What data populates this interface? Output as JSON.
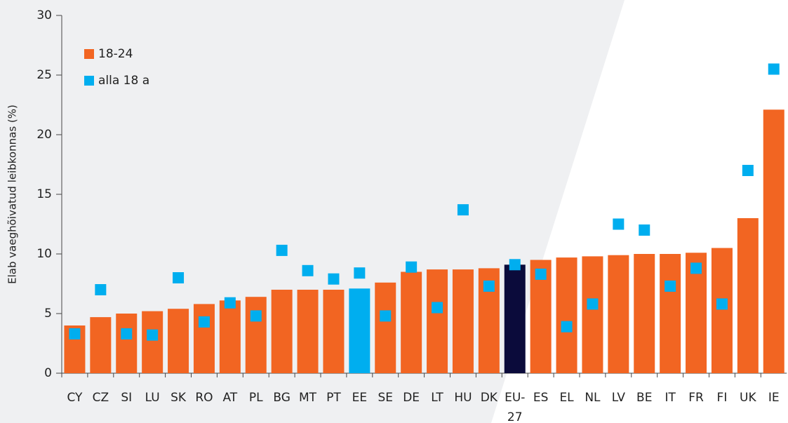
{
  "chart_data": {
    "type": "bar",
    "ylabel": "Elab vaeghõivatud leibkonnas (%)",
    "categories": [
      "CY",
      "CZ",
      "SI",
      "LU",
      "SK",
      "RO",
      "AT",
      "PL",
      "BG",
      "MT",
      "PT",
      "EE",
      "SE",
      "DE",
      "LT",
      "HU",
      "DK",
      "EU-27",
      "ES",
      "EL",
      "NL",
      "LV",
      "BE",
      "IT",
      "FR",
      "FI",
      "UK",
      "IE"
    ],
    "series": [
      {
        "name": "18-24",
        "color": "#f26522",
        "marker": "bar",
        "colors": [
          "#f26522",
          "#f26522",
          "#f26522",
          "#f26522",
          "#f26522",
          "#f26522",
          "#f26522",
          "#f26522",
          "#f26522",
          "#f26522",
          "#f26522",
          "#00aeef",
          "#f26522",
          "#f26522",
          "#f26522",
          "#f26522",
          "#f26522",
          "#0b0b3b",
          "#f26522",
          "#f26522",
          "#f26522",
          "#f26522",
          "#f26522",
          "#f26522",
          "#f26522",
          "#f26522",
          "#f26522",
          "#f26522"
        ],
        "values": [
          4.0,
          4.7,
          5.0,
          5.2,
          5.4,
          5.8,
          6.1,
          6.4,
          7.0,
          7.0,
          7.0,
          7.1,
          7.6,
          8.5,
          8.7,
          8.7,
          8.8,
          9.1,
          9.5,
          9.7,
          9.8,
          9.9,
          10.0,
          10.0,
          10.1,
          10.5,
          13.0,
          22.1
        ]
      },
      {
        "name": "alla 18 a",
        "color": "#00aeef",
        "marker": "square",
        "values": [
          3.3,
          7.0,
          3.3,
          3.2,
          8.0,
          4.3,
          5.9,
          4.8,
          10.3,
          8.6,
          7.9,
          8.4,
          4.8,
          8.9,
          5.5,
          13.7,
          7.3,
          9.1,
          8.3,
          3.9,
          5.8,
          12.5,
          12.0,
          7.3,
          8.8,
          5.8,
          17.0,
          25.5
        ]
      }
    ],
    "ylim": [
      0,
      30
    ],
    "yticks": [
      0,
      5,
      10,
      15,
      20,
      25,
      30
    ],
    "legend": "upper left"
  }
}
